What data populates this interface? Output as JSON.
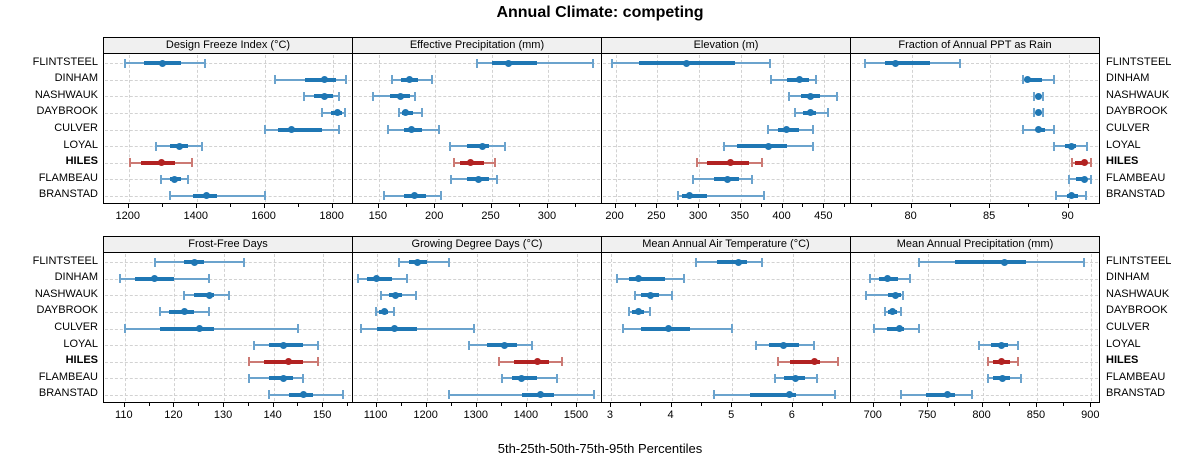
{
  "title": "Annual Climate: competing",
  "xlabel": "5th-25th-50th-75th-95th Percentiles",
  "locations": [
    "FLINTSTEEL",
    "DINHAM",
    "NASHWAUK",
    "DAYBROOK",
    "CULVER",
    "LOYAL",
    "HILES",
    "FLAMBEAU",
    "BRANSTAD"
  ],
  "highlight_location": "HILES",
  "percentile_order": [
    "p5",
    "p25",
    "p50",
    "p75",
    "p95"
  ],
  "colors": {
    "normal": "#1f77b4",
    "normal_light": "#6ba3cd",
    "highlight": "#b22222",
    "highlight_light": "#cc7a74",
    "header_bg": "#f0f0f0",
    "grid": "#d2d2d2",
    "border": "#000000"
  },
  "chart_data": [
    {
      "type": "scatter",
      "title": "Design Freeze Index (°C)",
      "row": 0,
      "col": 0,
      "xlim": [
        1130,
        1860
      ],
      "ticks": [
        1200,
        1400,
        1600,
        1800
      ],
      "grid": true,
      "legend": "none",
      "series": [
        {
          "name": "FLINTSTEEL",
          "percentiles": [
            1190,
            1245,
            1300,
            1355,
            1425
          ]
        },
        {
          "name": "DINHAM",
          "percentiles": [
            1630,
            1720,
            1775,
            1810,
            1840
          ]
        },
        {
          "name": "NASHWAUK",
          "percentiles": [
            1715,
            1745,
            1775,
            1800,
            1820
          ]
        },
        {
          "name": "DAYBROOK",
          "percentiles": [
            1770,
            1795,
            1815,
            1828,
            1835
          ]
        },
        {
          "name": "CULVER",
          "percentiles": [
            1600,
            1640,
            1680,
            1770,
            1820
          ]
        },
        {
          "name": "LOYAL",
          "percentiles": [
            1280,
            1320,
            1350,
            1375,
            1415
          ]
        },
        {
          "name": "HILES",
          "percentiles": [
            1205,
            1235,
            1295,
            1335,
            1385
          ]
        },
        {
          "name": "FLAMBEAU",
          "percentiles": [
            1295,
            1320,
            1335,
            1355,
            1375
          ]
        },
        {
          "name": "BRANSTAD",
          "percentiles": [
            1320,
            1390,
            1430,
            1460,
            1600
          ]
        }
      ]
    },
    {
      "type": "scatter",
      "title": "Effective Precipitation (mm)",
      "row": 0,
      "col": 1,
      "xlim": [
        128,
        348
      ],
      "ticks": [
        150,
        200,
        250,
        300
      ],
      "grid": true,
      "legend": "none",
      "series": [
        {
          "name": "FLINTSTEEL",
          "percentiles": [
            237,
            250,
            265,
            290,
            340
          ]
        },
        {
          "name": "DINHAM",
          "percentiles": [
            162,
            170,
            177,
            185,
            197
          ]
        },
        {
          "name": "NASHWAUK",
          "percentiles": [
            145,
            160,
            169,
            178,
            182
          ]
        },
        {
          "name": "DAYBROOK",
          "percentiles": [
            168,
            171,
            174,
            180,
            188
          ]
        },
        {
          "name": "CULVER",
          "percentiles": [
            158,
            172,
            179,
            188,
            203
          ]
        },
        {
          "name": "LOYAL",
          "percentiles": [
            213,
            228,
            242,
            248,
            262
          ]
        },
        {
          "name": "HILES",
          "percentiles": [
            217,
            222,
            231,
            243,
            253
          ]
        },
        {
          "name": "FLAMBEAU",
          "percentiles": [
            214,
            228,
            238,
            248,
            255
          ]
        },
        {
          "name": "BRANSTAD",
          "percentiles": [
            155,
            172,
            182,
            192,
            205
          ]
        }
      ]
    },
    {
      "type": "scatter",
      "title": "Elevation (m)",
      "row": 0,
      "col": 2,
      "xlim": [
        185,
        482
      ],
      "ticks": [
        200,
        250,
        300,
        350,
        400,
        450
      ],
      "grid": true,
      "legend": "none",
      "series": [
        {
          "name": "FLINTSTEEL",
          "percentiles": [
            196,
            228,
            285,
            343,
            385
          ]
        },
        {
          "name": "DINHAM",
          "percentiles": [
            386,
            405,
            420,
            432,
            440
          ]
        },
        {
          "name": "NASHWAUK",
          "percentiles": [
            408,
            422,
            433,
            445,
            465
          ]
        },
        {
          "name": "DAYBROOK",
          "percentiles": [
            415,
            425,
            434,
            440,
            455
          ]
        },
        {
          "name": "CULVER",
          "percentiles": [
            383,
            395,
            405,
            420,
            437
          ]
        },
        {
          "name": "LOYAL",
          "percentiles": [
            330,
            345,
            383,
            405,
            437
          ]
        },
        {
          "name": "HILES",
          "percentiles": [
            297,
            310,
            338,
            360,
            375
          ]
        },
        {
          "name": "FLAMBEAU",
          "percentiles": [
            293,
            318,
            334,
            348,
            363
          ]
        },
        {
          "name": "BRANSTAD",
          "percentiles": [
            275,
            280,
            289,
            310,
            378
          ]
        }
      ]
    },
    {
      "type": "scatter",
      "title": "Fraction of Annual PPT as Rain",
      "row": 0,
      "col": 3,
      "xlim": [
        76.2,
        92
      ],
      "ticks": [
        80,
        85,
        90
      ],
      "grid": true,
      "legend": "none",
      "series": [
        {
          "name": "FLINTSTEEL",
          "percentiles": [
            77.0,
            78.3,
            79.0,
            81.2,
            83.1
          ]
        },
        {
          "name": "DINHAM",
          "percentiles": [
            87.1,
            87.2,
            87.4,
            88.3,
            89.1
          ]
        },
        {
          "name": "NASHWAUK",
          "percentiles": [
            87.8,
            88.0,
            88.1,
            88.2,
            88.4
          ]
        },
        {
          "name": "DAYBROOK",
          "percentiles": [
            87.8,
            88.0,
            88.1,
            88.2,
            88.4
          ]
        },
        {
          "name": "CULVER",
          "percentiles": [
            87.1,
            87.9,
            88.1,
            88.5,
            89.1
          ]
        },
        {
          "name": "LOYAL",
          "percentiles": [
            89.1,
            89.8,
            90.2,
            90.5,
            91.2
          ]
        },
        {
          "name": "HILES",
          "percentiles": [
            90.2,
            90.4,
            91.0,
            91.1,
            91.4
          ]
        },
        {
          "name": "FLAMBEAU",
          "percentiles": [
            90.0,
            90.5,
            91.0,
            91.2,
            91.4
          ]
        },
        {
          "name": "BRANSTAD",
          "percentiles": [
            89.2,
            89.9,
            90.2,
            90.6,
            91.1
          ]
        }
      ]
    },
    {
      "type": "scatter",
      "title": "Frost-Free Days",
      "row": 1,
      "col": 0,
      "xlim": [
        106,
        156
      ],
      "ticks": [
        110,
        120,
        130,
        140,
        150
      ],
      "grid": true,
      "legend": "none",
      "series": [
        {
          "name": "FLINTSTEEL",
          "percentiles": [
            116,
            122,
            124,
            126,
            134
          ]
        },
        {
          "name": "DINHAM",
          "percentiles": [
            109,
            112,
            116,
            120,
            127
          ]
        },
        {
          "name": "NASHWAUK",
          "percentiles": [
            122,
            124,
            127,
            128,
            131
          ]
        },
        {
          "name": "DAYBROOK",
          "percentiles": [
            117,
            119,
            122,
            124,
            127
          ]
        },
        {
          "name": "CULVER",
          "percentiles": [
            110,
            117,
            125,
            128,
            145
          ]
        },
        {
          "name": "LOYAL",
          "percentiles": [
            136,
            139,
            142,
            146,
            149
          ]
        },
        {
          "name": "HILES",
          "percentiles": [
            135,
            138,
            143,
            146,
            149
          ]
        },
        {
          "name": "FLAMBEAU",
          "percentiles": [
            135,
            139,
            142,
            144,
            146
          ]
        },
        {
          "name": "BRANSTAD",
          "percentiles": [
            139,
            143,
            146,
            148,
            154
          ]
        }
      ]
    },
    {
      "type": "scatter",
      "title": "Growing Degree Days (°C)",
      "row": 1,
      "col": 1,
      "xlim": [
        1055,
        1550
      ],
      "ticks": [
        1100,
        1200,
        1300,
        1400,
        1500
      ],
      "grid": true,
      "legend": "none",
      "series": [
        {
          "name": "FLINTSTEEL",
          "percentiles": [
            1145,
            1165,
            1182,
            1200,
            1245
          ]
        },
        {
          "name": "DINHAM",
          "percentiles": [
            1062,
            1080,
            1100,
            1130,
            1160
          ]
        },
        {
          "name": "NASHWAUK",
          "percentiles": [
            1108,
            1125,
            1138,
            1150,
            1178
          ]
        },
        {
          "name": "DAYBROOK",
          "percentiles": [
            1098,
            1105,
            1115,
            1122,
            1135
          ]
        },
        {
          "name": "CULVER",
          "percentiles": [
            1068,
            1100,
            1135,
            1180,
            1295
          ]
        },
        {
          "name": "LOYAL",
          "percentiles": [
            1285,
            1320,
            1355,
            1380,
            1410
          ]
        },
        {
          "name": "HILES",
          "percentiles": [
            1345,
            1375,
            1422,
            1445,
            1470
          ]
        },
        {
          "name": "FLAMBEAU",
          "percentiles": [
            1350,
            1370,
            1390,
            1420,
            1460
          ]
        },
        {
          "name": "BRANSTAD",
          "percentiles": [
            1245,
            1390,
            1428,
            1455,
            1535
          ]
        }
      ]
    },
    {
      "type": "scatter",
      "title": "Mean Annual Air Temperature (°C)",
      "row": 1,
      "col": 2,
      "xlim": [
        2.87,
        6.96
      ],
      "ticks": [
        3,
        4,
        5,
        6
      ],
      "grid": true,
      "legend": "none",
      "series": [
        {
          "name": "FLINTSTEEL",
          "percentiles": [
            4.4,
            4.75,
            5.1,
            5.25,
            5.5
          ]
        },
        {
          "name": "DINHAM",
          "percentiles": [
            3.1,
            3.3,
            3.45,
            3.9,
            4.2
          ]
        },
        {
          "name": "NASHWAUK",
          "percentiles": [
            3.4,
            3.5,
            3.65,
            3.8,
            4.0
          ]
        },
        {
          "name": "DAYBROOK",
          "percentiles": [
            3.3,
            3.35,
            3.45,
            3.55,
            3.65
          ]
        },
        {
          "name": "CULVER",
          "percentiles": [
            3.2,
            3.5,
            3.95,
            4.3,
            5.0
          ]
        },
        {
          "name": "LOYAL",
          "percentiles": [
            5.4,
            5.6,
            5.85,
            6.1,
            6.35
          ]
        },
        {
          "name": "HILES",
          "percentiles": [
            5.75,
            5.95,
            6.35,
            6.45,
            6.75
          ]
        },
        {
          "name": "FLAMBEAU",
          "percentiles": [
            5.7,
            5.85,
            6.05,
            6.2,
            6.4
          ]
        },
        {
          "name": "BRANSTAD",
          "percentiles": [
            4.7,
            5.3,
            5.95,
            6.05,
            6.7
          ]
        }
      ]
    },
    {
      "type": "scatter",
      "title": "Mean Annual Precipitation (mm)",
      "row": 1,
      "col": 3,
      "xlim": [
        680,
        908
      ],
      "ticks": [
        700,
        750,
        800,
        850,
        900
      ],
      "grid": true,
      "legend": "none",
      "series": [
        {
          "name": "FLINTSTEEL",
          "percentiles": [
            742,
            775,
            820,
            840,
            893
          ]
        },
        {
          "name": "DINHAM",
          "percentiles": [
            697,
            705,
            713,
            722,
            733
          ]
        },
        {
          "name": "NASHWAUK",
          "percentiles": [
            693,
            713,
            720,
            725,
            727
          ]
        },
        {
          "name": "DAYBROOK",
          "percentiles": [
            710,
            713,
            717,
            721,
            725
          ]
        },
        {
          "name": "CULVER",
          "percentiles": [
            700,
            712,
            724,
            728,
            742
          ]
        },
        {
          "name": "LOYAL",
          "percentiles": [
            797,
            808,
            817,
            823,
            833
          ]
        },
        {
          "name": "HILES",
          "percentiles": [
            805,
            810,
            817,
            825,
            833
          ]
        },
        {
          "name": "FLAMBEAU",
          "percentiles": [
            805,
            810,
            818,
            825,
            835
          ]
        },
        {
          "name": "BRANSTAD",
          "percentiles": [
            725,
            748,
            768,
            775,
            790
          ]
        }
      ]
    }
  ]
}
